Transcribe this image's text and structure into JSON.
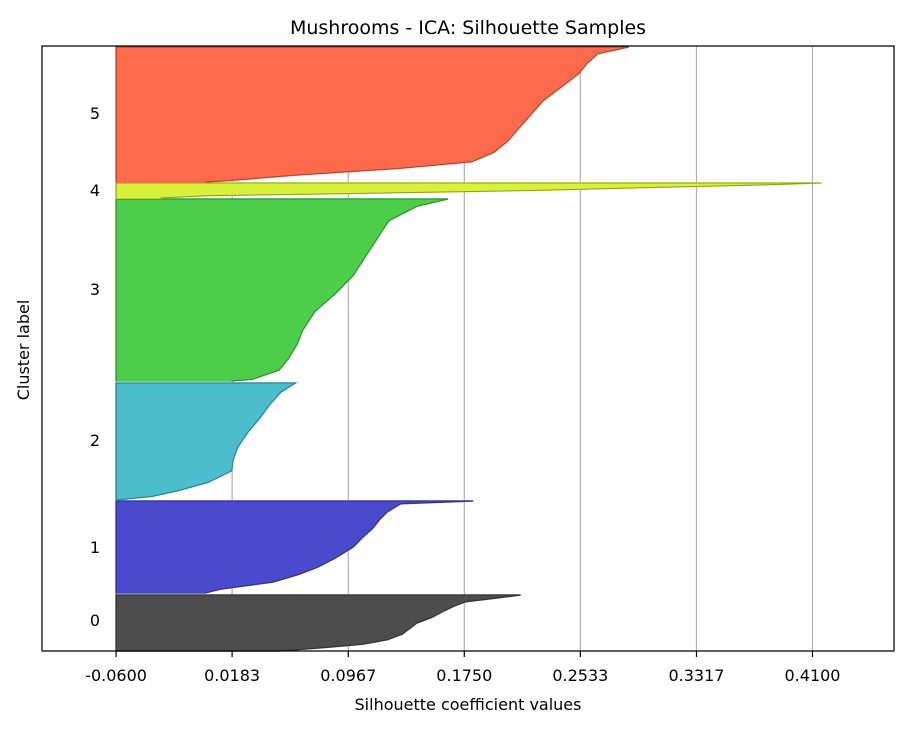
{
  "chart_data": {
    "type": "area",
    "title": "Mushrooms - ICA: Silhouette Samples",
    "xlabel": "Silhouette coefficient values",
    "ylabel": "Cluster label",
    "xlim": [
      -0.11,
      0.465
    ],
    "xticks": [
      "-0.0600",
      "0.0183",
      "0.0967",
      "0.1750",
      "0.2533",
      "0.3317",
      "0.4100"
    ],
    "xtick_values": [
      -0.06,
      0.0183,
      0.0967,
      0.175,
      0.2533,
      0.3317,
      0.41
    ],
    "grid": "vertical",
    "series": [
      {
        "label": "0",
        "color": "#4d4d4d",
        "profile": [
          [
            0.0,
            0.213
          ],
          [
            0.06,
            0.195
          ],
          [
            0.12,
            0.176
          ],
          [
            0.2,
            0.168
          ],
          [
            0.3,
            0.16
          ],
          [
            0.4,
            0.153
          ],
          [
            0.5,
            0.143
          ],
          [
            0.6,
            0.138
          ],
          [
            0.7,
            0.133
          ],
          [
            0.8,
            0.123
          ],
          [
            0.88,
            0.106
          ],
          [
            0.94,
            0.08
          ],
          [
            1.0,
            0.05
          ]
        ]
      },
      {
        "label": "1",
        "color": "#4a4acc",
        "profile": [
          [
            0.0,
            0.181
          ],
          [
            0.03,
            0.132
          ],
          [
            0.07,
            0.128
          ],
          [
            0.12,
            0.123
          ],
          [
            0.2,
            0.118
          ],
          [
            0.3,
            0.113
          ],
          [
            0.4,
            0.106
          ],
          [
            0.5,
            0.1
          ],
          [
            0.62,
            0.088
          ],
          [
            0.72,
            0.076
          ],
          [
            0.8,
            0.063
          ],
          [
            0.88,
            0.046
          ],
          [
            0.96,
            0.01
          ],
          [
            1.0,
            0.0
          ]
        ]
      },
      {
        "label": "2",
        "color": "#4bbdcc",
        "profile": [
          [
            0.0,
            0.061
          ],
          [
            0.08,
            0.051
          ],
          [
            0.18,
            0.044
          ],
          [
            0.3,
            0.037
          ],
          [
            0.42,
            0.029
          ],
          [
            0.55,
            0.022
          ],
          [
            0.66,
            0.019
          ],
          [
            0.75,
            0.018
          ],
          [
            0.85,
            0.002
          ],
          [
            0.92,
            -0.018
          ],
          [
            0.97,
            -0.036
          ],
          [
            1.0,
            -0.06
          ]
        ]
      },
      {
        "label": "3",
        "color": "#4dce4a",
        "profile": [
          [
            0.0,
            0.164
          ],
          [
            0.04,
            0.143
          ],
          [
            0.12,
            0.124
          ],
          [
            0.22,
            0.116
          ],
          [
            0.32,
            0.108
          ],
          [
            0.42,
            0.1
          ],
          [
            0.52,
            0.088
          ],
          [
            0.62,
            0.074
          ],
          [
            0.72,
            0.066
          ],
          [
            0.8,
            0.062
          ],
          [
            0.88,
            0.056
          ],
          [
            0.94,
            0.05
          ],
          [
            0.99,
            0.032
          ],
          [
            1.0,
            0.018
          ]
        ]
      },
      {
        "label": "4",
        "color": "#d8f23c",
        "profile": [
          [
            0.0,
            0.416
          ],
          [
            0.12,
            0.38
          ],
          [
            0.3,
            0.3
          ],
          [
            0.5,
            0.22
          ],
          [
            0.7,
            0.1
          ],
          [
            0.85,
            0.0
          ],
          [
            1.0,
            -0.03
          ]
        ]
      },
      {
        "label": "5",
        "color": "#ff6a4c",
        "profile": [
          [
            0.0,
            0.286
          ],
          [
            0.05,
            0.265
          ],
          [
            0.12,
            0.258
          ],
          [
            0.2,
            0.252
          ],
          [
            0.3,
            0.24
          ],
          [
            0.4,
            0.228
          ],
          [
            0.5,
            0.22
          ],
          [
            0.6,
            0.212
          ],
          [
            0.7,
            0.204
          ],
          [
            0.78,
            0.195
          ],
          [
            0.85,
            0.18
          ],
          [
            0.9,
            0.13
          ],
          [
            0.95,
            0.06
          ],
          [
            0.99,
            0.015
          ],
          [
            1.0,
            0.0
          ]
        ]
      }
    ]
  }
}
